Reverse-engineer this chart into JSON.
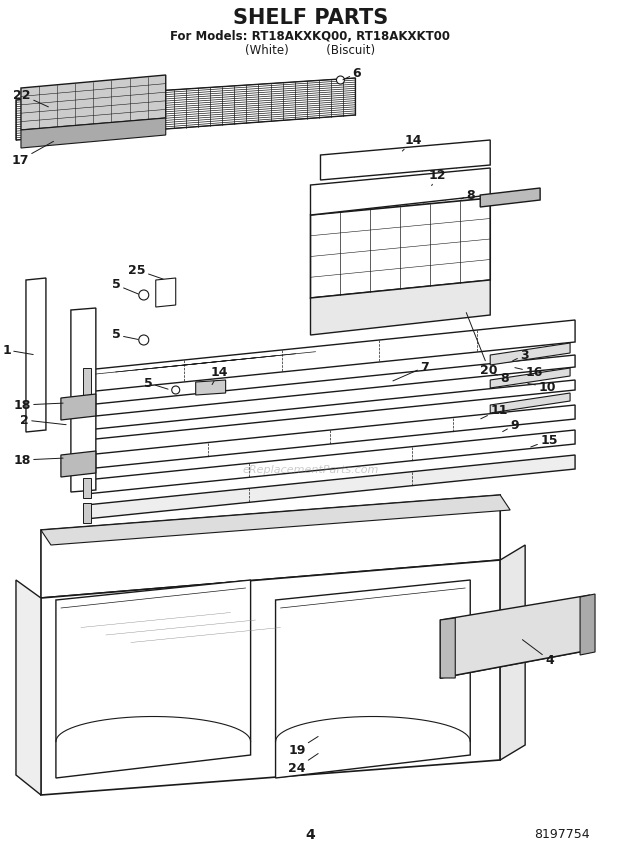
{
  "title": "SHELF PARTS",
  "subtitle_line1": "For Models: RT18AKXKQ00, RT18AKXKT00",
  "subtitle_line2": "(White)          (Biscuit)",
  "page_number": "4",
  "doc_number": "8197754",
  "bg_color": "#ffffff",
  "line_color": "#1a1a1a",
  "title_fontsize": 15,
  "subtitle_fontsize": 8.5,
  "label_fontsize": 9,
  "watermark": "eReplacementParts.com"
}
